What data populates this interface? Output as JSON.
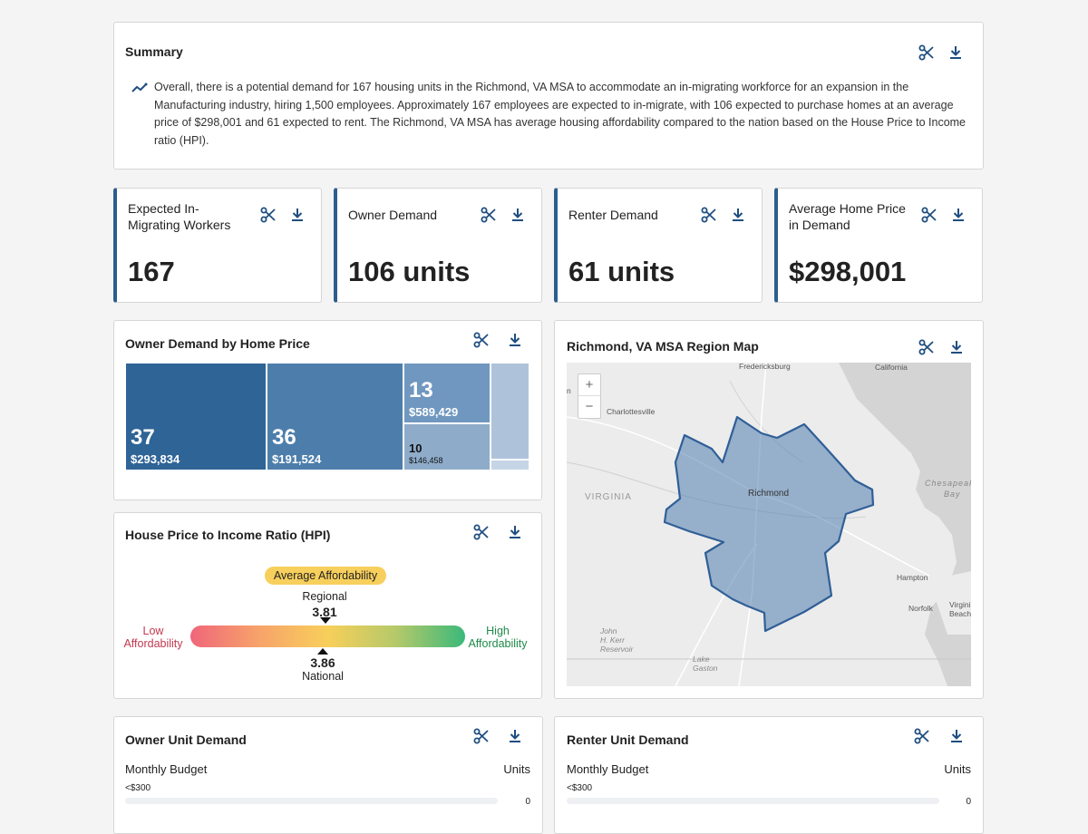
{
  "summary": {
    "title": "Summary",
    "text": "Overall, there is a potential demand for 167 housing units in the Richmond, VA MSA to accommodate an in-migrating workforce for an expansion in the Manufacturing industry, hiring 1,500 employees. Approximately 167 employees are expected to in-migrate, with 106 expected to purchase homes at an average price of $298,001 and 61 expected to rent. The Richmond, VA MSA has average housing affordability compared to the nation based on the House Price to Income ratio (HPI)."
  },
  "kpis": [
    {
      "label": "Expected In-Migrating Workers",
      "value": "167"
    },
    {
      "label": "Owner Demand",
      "value": "106 units"
    },
    {
      "label": "Renter Demand",
      "value": "61 units"
    },
    {
      "label": "Average Home Price in Demand",
      "value": "$298,001"
    }
  ],
  "treemap": {
    "title": "Owner Demand by Home Price",
    "cells": [
      {
        "count": "37",
        "price": "$293,834"
      },
      {
        "count": "36",
        "price": "$191,524"
      },
      {
        "count": "13",
        "price": "$589,429"
      },
      {
        "count": "10",
        "price": "$146,458"
      }
    ]
  },
  "hpi": {
    "title": "House Price to Income Ratio (HPI)",
    "badge": "Average Affordability",
    "regional_label": "Regional",
    "regional_value": "3.81",
    "national_label": "National",
    "national_value": "3.86",
    "low_label_1": "Low",
    "low_label_2": "Affordability",
    "high_label_1": "High",
    "high_label_2": "Affordability"
  },
  "map": {
    "title": "Richmond, VA MSA Region Map",
    "zoom_in": "+",
    "zoom_out": "−",
    "places": {
      "fredericksburg": "Fredericksburg",
      "california": "California",
      "charlottesville": "Charlottesville",
      "richmond": "Richmond",
      "virginia": "VIRGINIA",
      "chesapeake": "Chesapeak",
      "bay": "Bay",
      "hampton": "Hampton",
      "norfolk": "Norfolk",
      "virginia_beach_1": "Virgini",
      "virginia_beach_2": "Beach",
      "john_1": "John",
      "john_2": "H. Kerr",
      "john_3": "Reservoir",
      "lake_1": "Lake",
      "lake_2": "Gaston",
      "edge_letter": "n"
    }
  },
  "owner_demand": {
    "title": "Owner Unit Demand",
    "col_left": "Monthly Budget",
    "col_right": "Units",
    "rows": [
      {
        "label": "<$300",
        "value": "0"
      }
    ]
  },
  "renter_demand": {
    "title": "Renter Unit Demand",
    "col_left": "Monthly Budget",
    "col_right": "Units",
    "rows": [
      {
        "label": "<$300",
        "value": "0"
      }
    ]
  },
  "colors": {
    "accent": "#2b5e8f",
    "icon": "#1f4e80",
    "low": "#e8435b",
    "high": "#2e9e5b",
    "badge": "#f7cf5c"
  },
  "icons": {
    "tool_a": "scissors-icon",
    "tool_b": "download-icon",
    "trend": "trend-line-icon"
  }
}
